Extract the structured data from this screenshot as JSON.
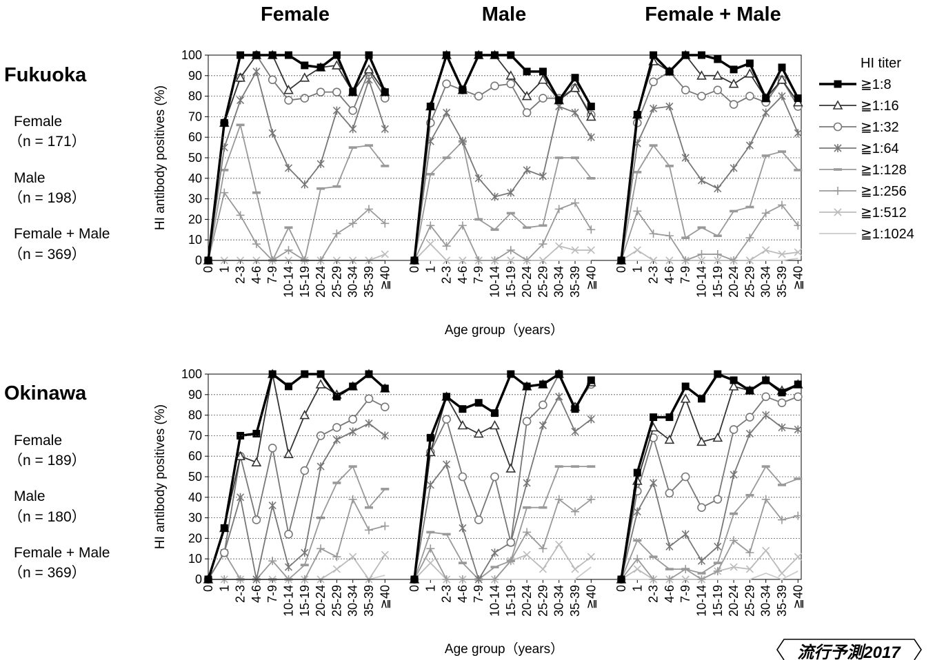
{
  "columns": [
    "Female",
    "Male",
    "Female + Male"
  ],
  "age_groups": [
    "0",
    "1",
    "2-3",
    "4-6",
    "7-9",
    "10-14",
    "15-19",
    "20-24",
    "25-29",
    "30-34",
    "35-39",
    "≧40"
  ],
  "badge": "流行予測2017",
  "legend": {
    "title": "HI titer",
    "items": [
      {
        "label": "≧1:8",
        "color": "#000000",
        "marker": "square",
        "width": 3.5
      },
      {
        "label": "≧1:16",
        "color": "#333333",
        "marker": "triangle",
        "width": 1.8
      },
      {
        "label": "≧1:32",
        "color": "#777777",
        "marker": "circle",
        "width": 1.8
      },
      {
        "label": "≧1:64",
        "color": "#777777",
        "marker": "star",
        "width": 1.8
      },
      {
        "label": "≧1:128",
        "color": "#999999",
        "marker": "dash",
        "width": 1.8
      },
      {
        "label": "≧1:256",
        "color": "#999999",
        "marker": "plus",
        "width": 1.8
      },
      {
        "label": "≧1:512",
        "color": "#bbbbbb",
        "marker": "x",
        "width": 1.8
      },
      {
        "label": "≧1:1024",
        "color": "#cccccc",
        "marker": "none",
        "width": 1.8
      }
    ]
  },
  "regions": [
    {
      "name": "Fukuoka",
      "ylabel": "HI antibody positives (%)",
      "xlabel": "Age group（years）",
      "groups": [
        {
          "label": "Female",
          "n": "（n = 171）"
        },
        {
          "label": "Male",
          "n": "（n = 198）"
        },
        {
          "label": "Female + Male",
          "n": "（n = 369）"
        }
      ]
    },
    {
      "name": "Okinawa",
      "ylabel": "HI antibody positives (%)",
      "xlabel": "Age group（years）",
      "groups": [
        {
          "label": "Female",
          "n": "（n = 189）"
        },
        {
          "label": "Male",
          "n": "（n = 180）"
        },
        {
          "label": "Female + Male",
          "n": "（n = 369）"
        }
      ]
    }
  ],
  "chart_data": [
    {
      "type": "line",
      "region": "Fukuoka",
      "panel": "Female",
      "ylabel": "HI antibody positives (%)",
      "xlabel": "Age group（years）",
      "ylim": [
        0,
        100
      ],
      "categories": [
        "0",
        "1",
        "2-3",
        "4-6",
        "7-9",
        "10-14",
        "15-19",
        "20-24",
        "25-29",
        "30-34",
        "35-39",
        "≧40"
      ],
      "series": [
        {
          "name": "≧1:8",
          "values": [
            0,
            67,
            100,
            100,
            100,
            100,
            95,
            94,
            100,
            82,
            100,
            82
          ]
        },
        {
          "name": "≧1:16",
          "values": [
            0,
            67,
            89,
            100,
            100,
            83,
            89,
            94,
            95,
            82,
            93,
            82
          ]
        },
        {
          "name": "≧1:32",
          "values": [
            0,
            67,
            89,
            100,
            88,
            78,
            79,
            82,
            82,
            73,
            92,
            79
          ]
        },
        {
          "name": "≧1:64",
          "values": [
            0,
            55,
            78,
            92,
            62,
            45,
            37,
            47,
            73,
            64,
            88,
            64
          ]
        },
        {
          "name": "≧1:128",
          "values": [
            0,
            44,
            66,
            33,
            0,
            16,
            0,
            35,
            36,
            55,
            56,
            46
          ]
        },
        {
          "name": "≧1:256",
          "values": [
            0,
            33,
            22,
            8,
            0,
            5,
            0,
            0,
            13,
            18,
            25,
            18
          ]
        },
        {
          "name": "≧1:512",
          "values": [
            0,
            0,
            0,
            0,
            0,
            0,
            0,
            0,
            0,
            0,
            0,
            3
          ]
        },
        {
          "name": "≧1:1024",
          "values": [
            0,
            0,
            0,
            0,
            0,
            0,
            0,
            0,
            0,
            0,
            0,
            0
          ]
        }
      ]
    },
    {
      "type": "line",
      "region": "Fukuoka",
      "panel": "Male",
      "ylim": [
        0,
        100
      ],
      "categories": [
        "0",
        "1",
        "2-3",
        "4-6",
        "7-9",
        "10-14",
        "15-19",
        "20-24",
        "25-29",
        "30-34",
        "35-39",
        "≧40"
      ],
      "series": [
        {
          "name": "≧1:8",
          "values": [
            0,
            75,
            100,
            83,
            100,
            100,
            100,
            92,
            92,
            78,
            89,
            75
          ]
        },
        {
          "name": "≧1:16",
          "values": [
            0,
            75,
            100,
            83,
            100,
            100,
            90,
            80,
            88,
            78,
            84,
            70
          ]
        },
        {
          "name": "≧1:32",
          "values": [
            0,
            67,
            86,
            83,
            80,
            85,
            86,
            72,
            79,
            79,
            84,
            71
          ]
        },
        {
          "name": "≧1:64",
          "values": [
            0,
            58,
            72,
            58,
            40,
            31,
            33,
            44,
            41,
            75,
            72,
            60
          ]
        },
        {
          "name": "≧1:128",
          "values": [
            0,
            42,
            50,
            58,
            20,
            15,
            23,
            16,
            17,
            50,
            50,
            40
          ]
        },
        {
          "name": "≧1:256",
          "values": [
            0,
            17,
            7,
            17,
            0,
            0,
            5,
            0,
            8,
            25,
            28,
            15
          ]
        },
        {
          "name": "≧1:512",
          "values": [
            0,
            8,
            0,
            0,
            0,
            0,
            0,
            0,
            0,
            7,
            5,
            5
          ]
        },
        {
          "name": "≧1:1024",
          "values": [
            0,
            0,
            0,
            0,
            0,
            0,
            0,
            0,
            0,
            0,
            0,
            0
          ]
        }
      ]
    },
    {
      "type": "line",
      "region": "Fukuoka",
      "panel": "Female + Male",
      "ylim": [
        0,
        100
      ],
      "categories": [
        "0",
        "1",
        "2-3",
        "4-6",
        "7-9",
        "10-14",
        "15-19",
        "20-24",
        "25-29",
        "30-34",
        "35-39",
        "≧40"
      ],
      "series": [
        {
          "name": "≧1:8",
          "values": [
            0,
            71,
            100,
            92,
            100,
            100,
            98,
            93,
            96,
            79,
            94,
            79
          ]
        },
        {
          "name": "≧1:16",
          "values": [
            0,
            71,
            97,
            92,
            100,
            90,
            90,
            86,
            91,
            79,
            88,
            77
          ]
        },
        {
          "name": "≧1:32",
          "values": [
            0,
            67,
            87,
            92,
            83,
            80,
            83,
            76,
            80,
            77,
            88,
            75
          ]
        },
        {
          "name": "≧1:64",
          "values": [
            0,
            57,
            74,
            75,
            50,
            39,
            35,
            45,
            56,
            72,
            80,
            62
          ]
        },
        {
          "name": "≧1:128",
          "values": [
            0,
            43,
            56,
            46,
            11,
            16,
            12,
            24,
            26,
            51,
            53,
            44
          ]
        },
        {
          "name": "≧1:256",
          "values": [
            0,
            24,
            13,
            12,
            0,
            3,
            3,
            0,
            11,
            23,
            27,
            17
          ]
        },
        {
          "name": "≧1:512",
          "values": [
            0,
            5,
            0,
            0,
            0,
            0,
            0,
            0,
            0,
            5,
            3,
            4
          ]
        },
        {
          "name": "≧1:1024",
          "values": [
            0,
            0,
            0,
            0,
            0,
            0,
            0,
            0,
            0,
            0,
            0,
            1
          ]
        }
      ]
    },
    {
      "type": "line",
      "region": "Okinawa",
      "panel": "Female",
      "ylabel": "HI antibody positives (%)",
      "xlabel": "Age group（years）",
      "ylim": [
        0,
        100
      ],
      "categories": [
        "0",
        "1",
        "2-3",
        "4-6",
        "7-9",
        "10-14",
        "15-19",
        "20-24",
        "25-29",
        "30-34",
        "35-39",
        "≧40"
      ],
      "series": [
        {
          "name": "≧1:8",
          "values": [
            0,
            25,
            70,
            71,
            100,
            94,
            100,
            100,
            89,
            94,
            100,
            93
          ]
        },
        {
          "name": "≧1:16",
          "values": [
            0,
            25,
            60,
            57,
            100,
            61,
            80,
            95,
            90,
            94,
            100,
            93
          ]
        },
        {
          "name": "≧1:32",
          "values": [
            0,
            13,
            60,
            29,
            64,
            22,
            53,
            70,
            74,
            78,
            88,
            84
          ]
        },
        {
          "name": "≧1:64",
          "values": [
            0,
            13,
            40,
            0,
            36,
            6,
            13,
            55,
            68,
            72,
            76,
            70
          ]
        },
        {
          "name": "≧1:128",
          "values": [
            0,
            13,
            0,
            0,
            0,
            0,
            7,
            30,
            47,
            55,
            35,
            44
          ]
        },
        {
          "name": "≧1:256",
          "values": [
            0,
            0,
            0,
            0,
            9,
            0,
            0,
            15,
            11,
            39,
            24,
            26
          ]
        },
        {
          "name": "≧1:512",
          "values": [
            0,
            0,
            0,
            0,
            0,
            0,
            0,
            0,
            5,
            11,
            0,
            12
          ]
        },
        {
          "name": "≧1:1024",
          "values": [
            0,
            0,
            0,
            0,
            0,
            0,
            0,
            0,
            0,
            0,
            0,
            2
          ]
        }
      ]
    },
    {
      "type": "line",
      "region": "Okinawa",
      "panel": "Male",
      "ylim": [
        0,
        100
      ],
      "categories": [
        "0",
        "1",
        "2-3",
        "4-6",
        "7-9",
        "10-14",
        "15-19",
        "20-24",
        "25-29",
        "30-34",
        "35-39",
        "≧40"
      ],
      "series": [
        {
          "name": "≧1:8",
          "values": [
            0,
            69,
            89,
            83,
            86,
            81,
            100,
            94,
            95,
            100,
            83,
            97
          ]
        },
        {
          "name": "≧1:16",
          "values": [
            0,
            62,
            89,
            75,
            71,
            75,
            54,
            94,
            95,
            100,
            84,
            96
          ]
        },
        {
          "name": "≧1:32",
          "values": [
            0,
            62,
            78,
            50,
            29,
            50,
            18,
            77,
            85,
            100,
            84,
            95
          ]
        },
        {
          "name": "≧1:64",
          "values": [
            0,
            46,
            56,
            25,
            0,
            13,
            18,
            47,
            75,
            89,
            72,
            78
          ]
        },
        {
          "name": "≧1:128",
          "values": [
            0,
            23,
            22,
            8,
            0,
            6,
            9,
            35,
            35,
            55,
            55,
            55
          ]
        },
        {
          "name": "≧1:256",
          "values": [
            0,
            15,
            0,
            0,
            0,
            0,
            9,
            23,
            15,
            39,
            33,
            39
          ]
        },
        {
          "name": "≧1:512",
          "values": [
            0,
            8,
            0,
            0,
            0,
            0,
            9,
            12,
            5,
            17,
            5,
            11
          ]
        },
        {
          "name": "≧1:1024",
          "values": [
            0,
            0,
            0,
            0,
            0,
            0,
            0,
            0,
            0,
            0,
            0,
            6
          ]
        }
      ]
    },
    {
      "type": "line",
      "region": "Okinawa",
      "panel": "Female + Male",
      "ylim": [
        0,
        100
      ],
      "categories": [
        "0",
        "1",
        "2-3",
        "4-6",
        "7-9",
        "10-14",
        "15-19",
        "20-24",
        "25-29",
        "30-34",
        "35-39",
        "≧40"
      ],
      "series": [
        {
          "name": "≧1:8",
          "values": [
            0,
            52,
            79,
            79,
            94,
            88,
            100,
            97,
            92,
            97,
            91,
            95
          ]
        },
        {
          "name": "≧1:16",
          "values": [
            0,
            48,
            74,
            68,
            88,
            67,
            69,
            94,
            92,
            97,
            92,
            95
          ]
        },
        {
          "name": "≧1:32",
          "values": [
            0,
            43,
            69,
            42,
            50,
            35,
            39,
            73,
            79,
            89,
            86,
            89
          ]
        },
        {
          "name": "≧1:64",
          "values": [
            0,
            33,
            47,
            16,
            22,
            9,
            16,
            51,
            71,
            80,
            74,
            73
          ]
        },
        {
          "name": "≧1:128",
          "values": [
            0,
            19,
            11,
            5,
            5,
            3,
            8,
            32,
            41,
            55,
            46,
            49
          ]
        },
        {
          "name": "≧1:256",
          "values": [
            0,
            10,
            0,
            0,
            5,
            0,
            4,
            19,
            13,
            39,
            29,
            31
          ]
        },
        {
          "name": "≧1:512",
          "values": [
            0,
            5,
            0,
            0,
            0,
            0,
            4,
            6,
            5,
            14,
            3,
            11
          ]
        },
        {
          "name": "≧1:1024",
          "values": [
            0,
            0,
            0,
            0,
            0,
            0,
            0,
            0,
            0,
            3,
            0,
            4
          ]
        }
      ]
    }
  ]
}
